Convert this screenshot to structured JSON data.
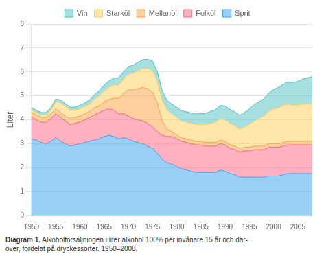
{
  "chart_data": {
    "type": "area",
    "stacked": true,
    "y_label": "Liter",
    "caption_label": "Diagram 1.",
    "caption": "Alkoholförsäljningen i liter alkohol 100% per invånare 15 år och där-\növer, fördelat på dryckessorter. 1950–2008.",
    "x": [
      1950,
      1951,
      1952,
      1953,
      1954,
      1955,
      1956,
      1957,
      1958,
      1959,
      1960,
      1961,
      1962,
      1963,
      1964,
      1965,
      1966,
      1967,
      1968,
      1969,
      1970,
      1971,
      1972,
      1973,
      1974,
      1975,
      1976,
      1977,
      1978,
      1979,
      1980,
      1981,
      1982,
      1983,
      1984,
      1985,
      1986,
      1987,
      1988,
      1989,
      1990,
      1991,
      1992,
      1993,
      1994,
      1995,
      1996,
      1997,
      1998,
      1999,
      2000,
      2001,
      2002,
      2003,
      2004,
      2005,
      2006,
      2007,
      2008
    ],
    "series": [
      {
        "name": "Sprit",
        "values": [
          3.2,
          3.15,
          3.05,
          3.0,
          3.1,
          3.25,
          3.1,
          3.0,
          2.9,
          2.95,
          3.0,
          3.05,
          3.1,
          3.15,
          3.2,
          3.3,
          3.35,
          3.3,
          3.2,
          3.25,
          3.2,
          3.1,
          3.05,
          3.0,
          2.9,
          2.8,
          2.6,
          2.35,
          2.2,
          2.15,
          2.05,
          1.95,
          1.9,
          1.85,
          1.8,
          1.8,
          1.8,
          1.8,
          1.8,
          1.9,
          1.85,
          1.75,
          1.7,
          1.6,
          1.6,
          1.6,
          1.6,
          1.6,
          1.6,
          1.65,
          1.65,
          1.65,
          1.7,
          1.75,
          1.75,
          1.75,
          1.75,
          1.75,
          1.75
        ]
      },
      {
        "name": "Folköl",
        "values": [
          0.9,
          0.85,
          0.85,
          0.9,
          0.95,
          1.0,
          1.0,
          0.95,
          0.9,
          0.9,
          0.9,
          0.95,
          1.0,
          1.05,
          1.1,
          1.1,
          1.1,
          1.1,
          1.05,
          1.0,
          0.95,
          0.95,
          0.95,
          0.95,
          0.95,
          0.9,
          0.9,
          1.0,
          1.1,
          1.15,
          1.15,
          1.15,
          1.15,
          1.15,
          1.15,
          1.15,
          1.1,
          1.1,
          1.1,
          1.1,
          1.1,
          1.05,
          1.05,
          1.05,
          1.1,
          1.1,
          1.15,
          1.15,
          1.15,
          1.2,
          1.2,
          1.2,
          1.2,
          1.2,
          1.2,
          1.2,
          1.2,
          1.2,
          1.2
        ]
      },
      {
        "name": "Mellanöl",
        "values": [
          0.2,
          0.2,
          0.2,
          0.2,
          0.2,
          0.2,
          0.2,
          0.2,
          0.25,
          0.25,
          0.25,
          0.25,
          0.25,
          0.3,
          0.3,
          0.35,
          0.4,
          0.5,
          0.65,
          0.85,
          1.1,
          1.2,
          1.3,
          1.4,
          1.45,
          1.45,
          1.2,
          0.6,
          0.3,
          0.2,
          0.15,
          0.15,
          0.15,
          0.15,
          0.15,
          0.15,
          0.15,
          0.15,
          0.15,
          0.15,
          0.15,
          0.15,
          0.15,
          0.15,
          0.15,
          0.15,
          0.15,
          0.15,
          0.15,
          0.15,
          0.15,
          0.15,
          0.15,
          0.15,
          0.15,
          0.15,
          0.15,
          0.15,
          0.15
        ]
      },
      {
        "name": "Starköl",
        "values": [
          0.1,
          0.1,
          0.1,
          0.1,
          0.15,
          0.3,
          0.4,
          0.4,
          0.35,
          0.3,
          0.3,
          0.3,
          0.3,
          0.35,
          0.4,
          0.45,
          0.5,
          0.55,
          0.55,
          0.6,
          0.65,
          0.7,
          0.75,
          0.8,
          0.85,
          0.9,
          0.9,
          0.85,
          0.8,
          0.75,
          0.75,
          0.7,
          0.7,
          0.7,
          0.7,
          0.7,
          0.75,
          0.8,
          0.85,
          0.9,
          0.9,
          0.9,
          0.85,
          0.8,
          0.85,
          0.95,
          1.05,
          1.15,
          1.25,
          1.35,
          1.45,
          1.5,
          1.55,
          1.55,
          1.5,
          1.5,
          1.55,
          1.55,
          1.55
        ]
      },
      {
        "name": "Vin",
        "values": [
          0.1,
          0.1,
          0.1,
          0.1,
          0.1,
          0.12,
          0.12,
          0.12,
          0.12,
          0.13,
          0.15,
          0.15,
          0.18,
          0.2,
          0.22,
          0.25,
          0.27,
          0.28,
          0.3,
          0.3,
          0.32,
          0.33,
          0.35,
          0.36,
          0.38,
          0.4,
          0.4,
          0.4,
          0.4,
          0.4,
          0.42,
          0.42,
          0.43,
          0.43,
          0.44,
          0.45,
          0.47,
          0.5,
          0.52,
          0.55,
          0.57,
          0.58,
          0.58,
          0.58,
          0.6,
          0.65,
          0.68,
          0.7,
          0.73,
          0.76,
          0.82,
          0.85,
          0.88,
          0.92,
          0.96,
          1.0,
          1.05,
          1.1,
          1.15
        ]
      }
    ],
    "xlim": [
      1950,
      2008
    ],
    "xticks": [
      1950,
      1955,
      1960,
      1965,
      1970,
      1975,
      1980,
      1985,
      1990,
      1995,
      2000,
      2005
    ],
    "ylim": [
      0,
      8
    ],
    "yticks": [
      0,
      1,
      2,
      3,
      4,
      5,
      6,
      7,
      8
    ],
    "grid": "y",
    "legend": "top"
  }
}
